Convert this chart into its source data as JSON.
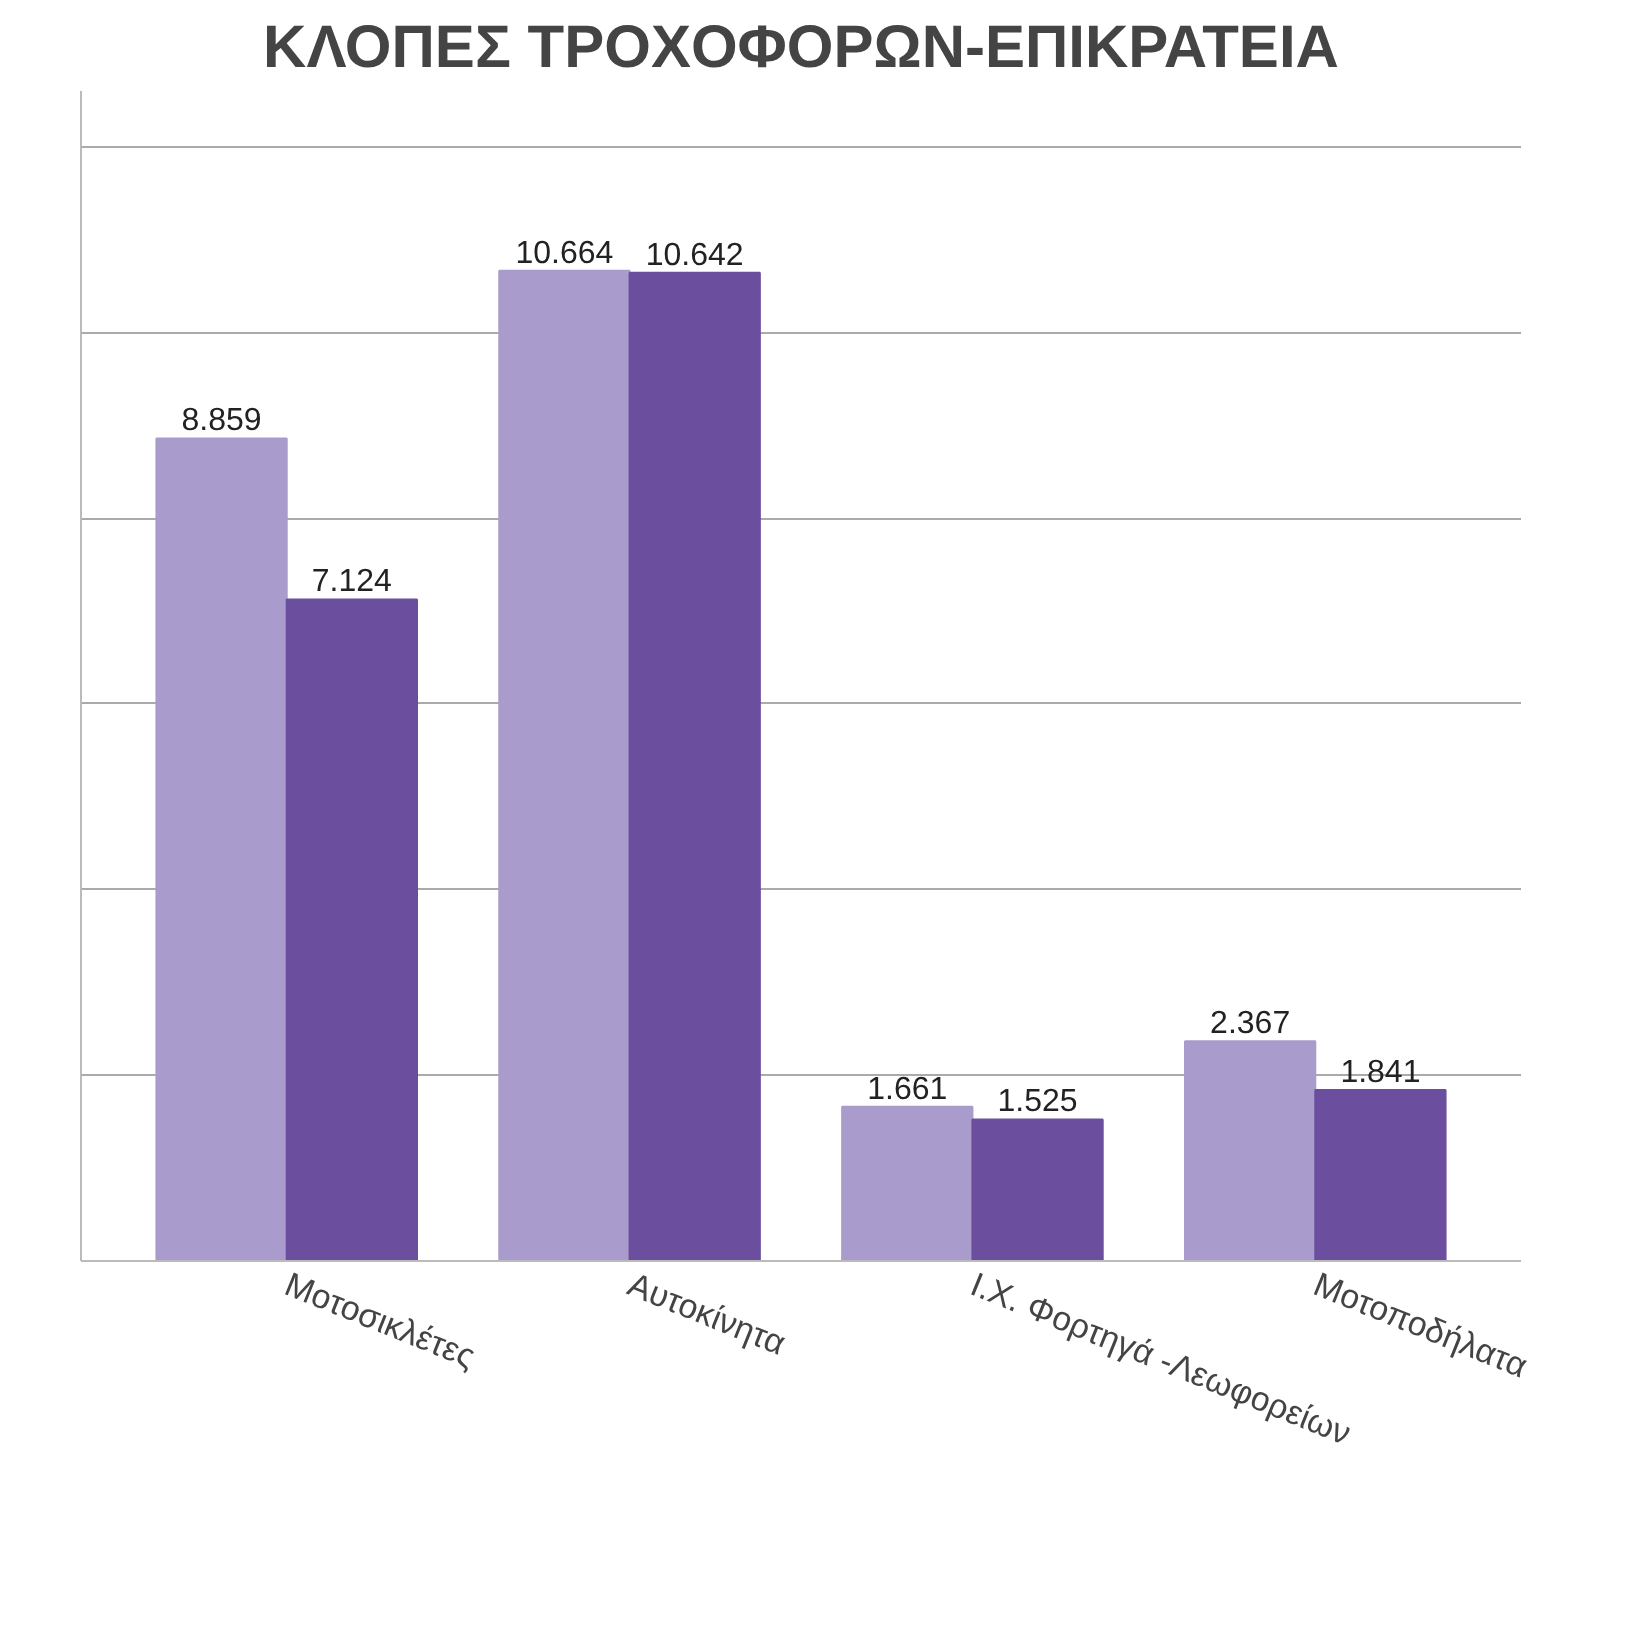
{
  "chart_data": {
    "type": "bar",
    "title": "ΚΛΟΠΕΣ ΤΡΟΧΟΦΟΡΩΝ-ΕΠΙΚΡΑΤΕΙΑ",
    "categories": [
      "Μοτοσικλέτες",
      "Αυτοκίνητα",
      "Ι.Χ. Φορτηγά -Λεωφορείων",
      "Μοτοποδήλατα"
    ],
    "series": [
      {
        "color": "#a99bcb",
        "values": [
          8859,
          10664,
          1661,
          2367
        ],
        "value_labels": [
          "8.859",
          "10.664",
          "1.661",
          "2.367"
        ]
      },
      {
        "color": "#6b4f9e",
        "values": [
          7124,
          10642,
          1525,
          1841
        ],
        "value_labels": [
          "7.124",
          "10.642",
          "1.525",
          "1.841"
        ]
      }
    ],
    "ylim": [
      0,
      12600
    ],
    "yticks": [
      {
        "value": 0,
        "label": null
      },
      {
        "value": 2000,
        "label": null
      },
      {
        "value": 4000,
        "label": null
      },
      {
        "value": 6000,
        "label": null
      },
      {
        "value": 8000,
        "label": null
      },
      {
        "value": 10000,
        "label": null
      },
      {
        "value": 12000,
        "label": null
      }
    ],
    "grid": "y",
    "tick_labels": "x"
  }
}
